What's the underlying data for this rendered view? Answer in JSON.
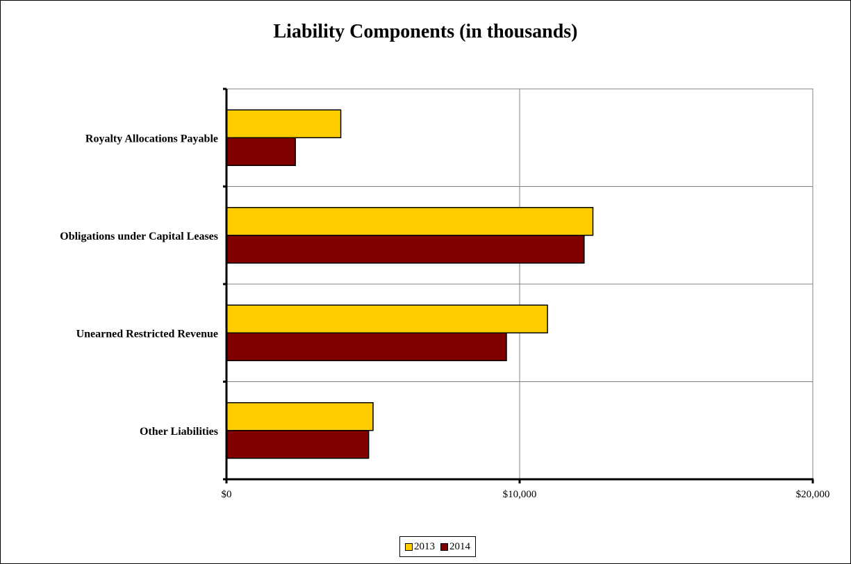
{
  "chart_data": {
    "type": "bar",
    "orientation": "horizontal",
    "title": "Liability Components (in thousands)",
    "categories": [
      "Royalty Allocations Payable",
      "Obligations under Capital Leases",
      "Unearned Restricted Revenue",
      "Other Liabilities"
    ],
    "series": [
      {
        "name": "2013",
        "color": "#FFCC00",
        "values": [
          3900,
          12500,
          10950,
          5000
        ]
      },
      {
        "name": "2014",
        "color": "#800000",
        "values": [
          2350,
          12200,
          9550,
          4850
        ]
      }
    ],
    "xlim": [
      0,
      20000
    ],
    "xticks": [
      "$0",
      "$10,000",
      "$20,000"
    ],
    "grid": true,
    "legend_position": "bottom"
  }
}
